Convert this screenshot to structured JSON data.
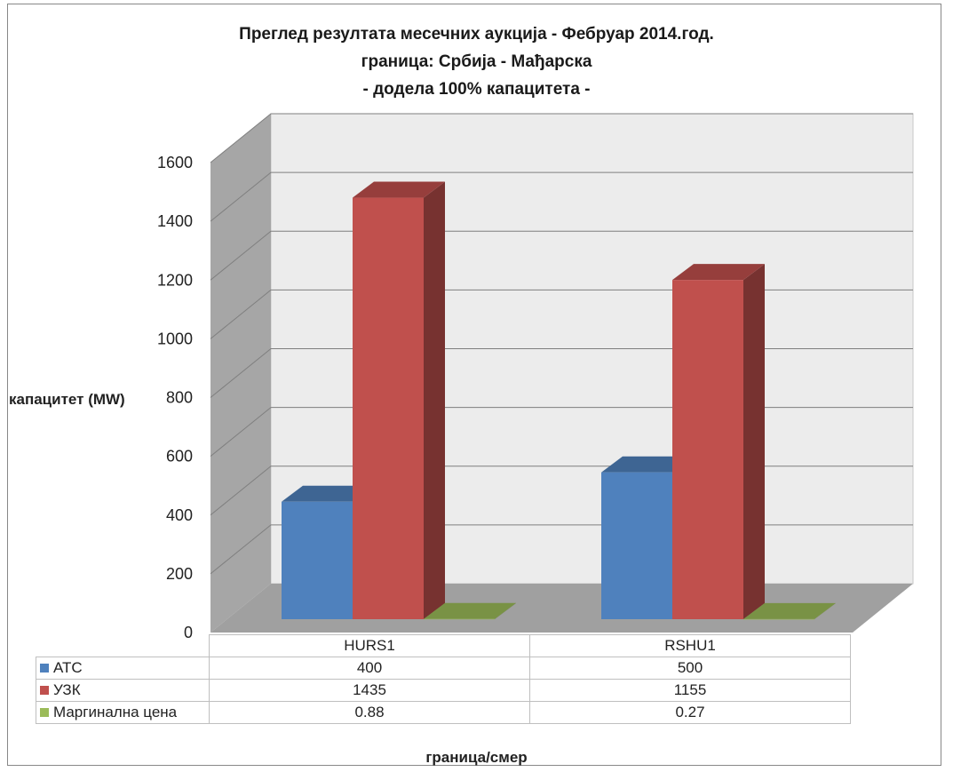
{
  "chart_data": {
    "type": "bar",
    "title": "Преглед резултата месечних аукција - Фебруар 2014.год.",
    "subtitle_lines": [
      "граница: Србија - Мађарска",
      "- додела 100% капацитета -"
    ],
    "xlabel": "граница/смер",
    "ylabel": "капацитет (MW)",
    "ylim": [
      0,
      1600
    ],
    "y_ticks": [
      "0",
      "200",
      "400",
      "600",
      "800",
      "1000",
      "1200",
      "1400",
      "1600"
    ],
    "categories": [
      "HURS1",
      "RSHU1"
    ],
    "series": [
      {
        "name": "АТС",
        "values": [
          400,
          500
        ],
        "display": [
          "400",
          "500"
        ],
        "color": "#4f81bd"
      },
      {
        "name": "УЗК",
        "values": [
          1435,
          1155
        ],
        "display": [
          "1435",
          "1155"
        ],
        "color": "#c0504d"
      },
      {
        "name": "Маргинална цена",
        "values": [
          0.88,
          0.27
        ],
        "display": [
          "0.88",
          "0.27"
        ],
        "color": "#9bbb59"
      }
    ],
    "grid": true,
    "legend": "data-table"
  }
}
